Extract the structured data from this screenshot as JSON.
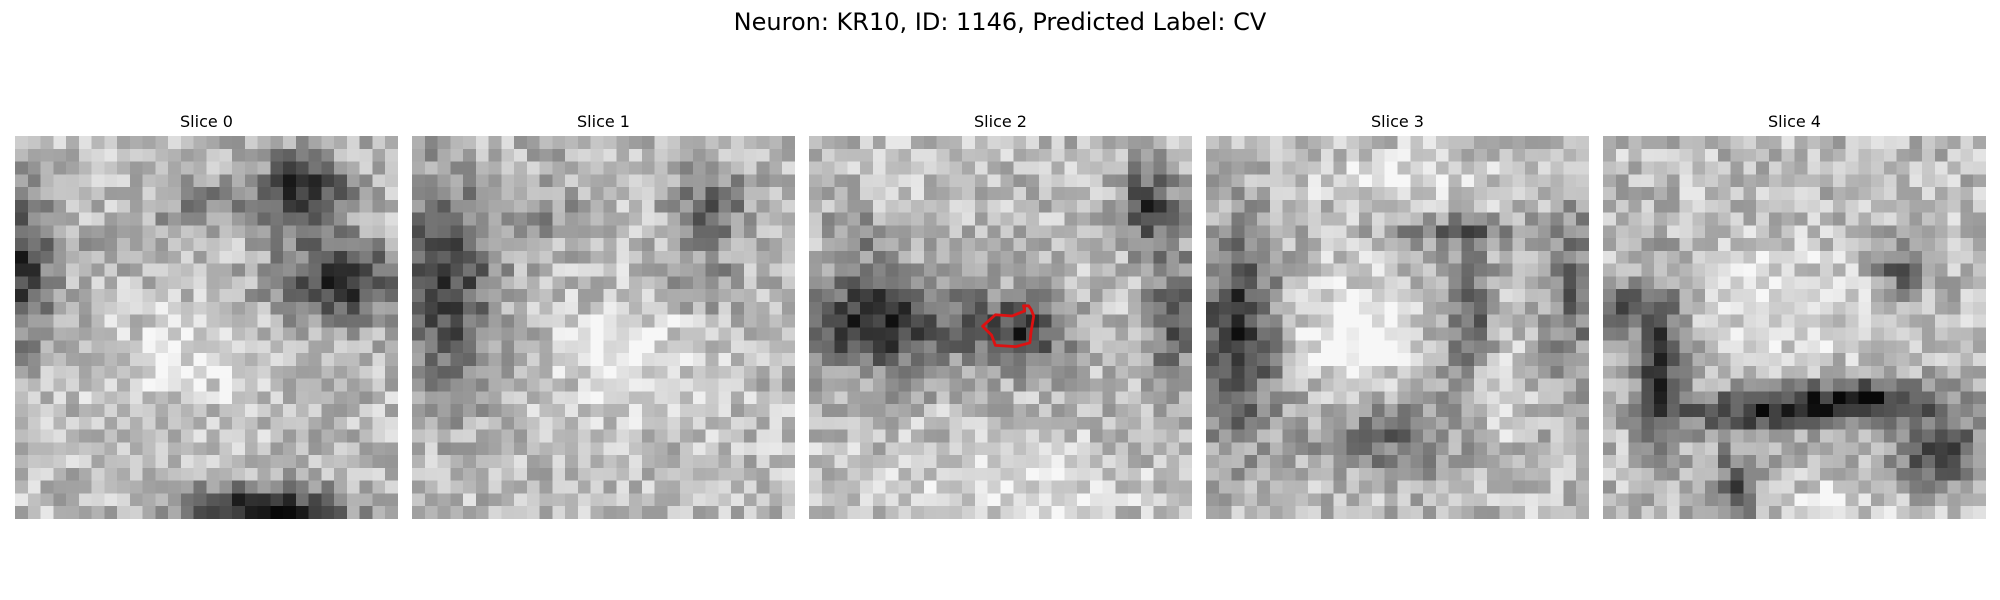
{
  "figure": {
    "title": "Neuron: KR10, ID: 1146, Predicted Label: CV"
  },
  "panels": [
    {
      "title": "Slice 0"
    },
    {
      "title": "Slice 1"
    },
    {
      "title": "Slice 2"
    },
    {
      "title": "Slice 3"
    },
    {
      "title": "Slice 4"
    }
  ],
  "colormap": "gray",
  "highlight": {
    "slice_index": 2,
    "color": "#dd1111"
  }
}
